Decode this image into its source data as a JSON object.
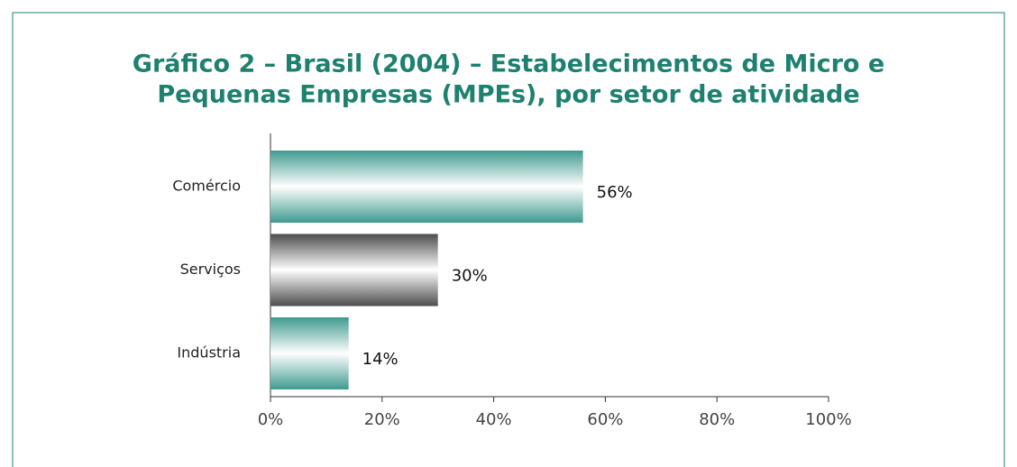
{
  "chart_data": {
    "type": "bar",
    "orientation": "horizontal",
    "title": [
      "Gráfico 2 – Brasil (2004) – Estabelecimentos de Micro e",
      "Pequenas Empresas (MPEs), por setor de atividade"
    ],
    "categories": [
      "Comércio",
      "Serviços",
      "Indústria"
    ],
    "values": [
      56,
      30,
      14
    ],
    "value_labels": [
      "56%",
      "30%",
      "14%"
    ],
    "colors": [
      "#3f9a8f",
      "#4d4d4d",
      "#3f9a8f"
    ],
    "xlim": [
      0,
      100
    ],
    "xticks": [
      {
        "value": 0,
        "label": "0%"
      },
      {
        "value": 20,
        "label": "20%"
      },
      {
        "value": 40,
        "label": "40%"
      },
      {
        "value": 60,
        "label": "60%"
      },
      {
        "value": 80,
        "label": "80%"
      },
      {
        "value": 100,
        "label": "100%"
      }
    ]
  }
}
